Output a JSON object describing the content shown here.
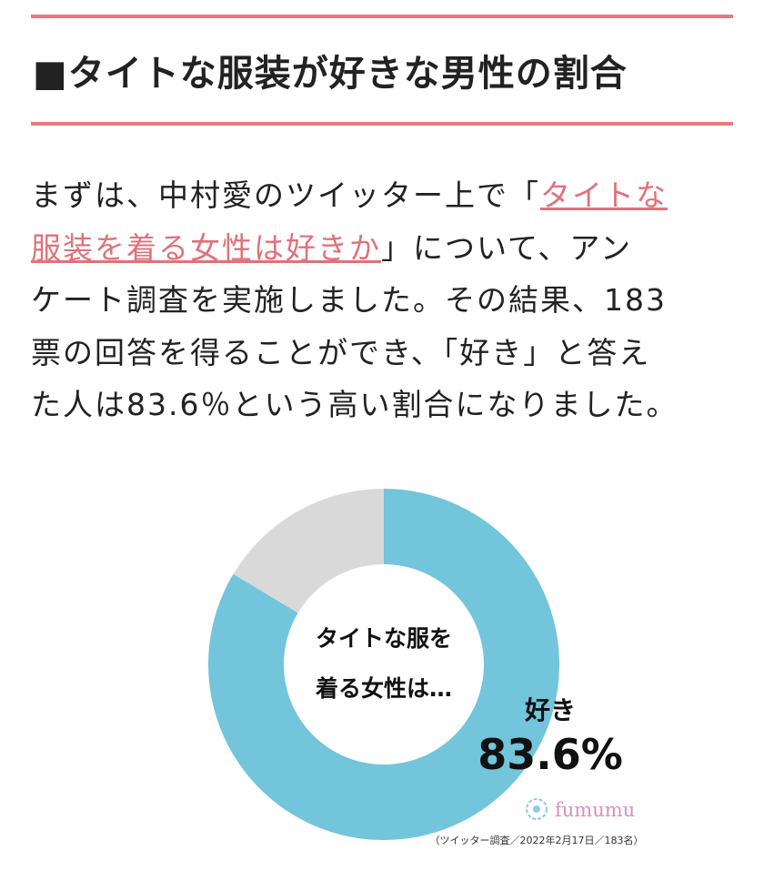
{
  "heading": {
    "marker": "■",
    "text": "タイトな服装が好きな男性の割合"
  },
  "body": {
    "line1_pre": "まずは、中村愛のツイッター上で「",
    "link_part1": "タイトな",
    "link_part2": "服装を着る女性は好きか",
    "line2_post": "」について、アン",
    "line3": "ケート調査を実施しました。その結果、183",
    "line4": "票の回答を得ることができ、「好き」と答え",
    "line5": "た人は83.6％という高い割合になりました。"
  },
  "chart_data": {
    "type": "pie",
    "variant": "donut",
    "center_label_line1": "タイトな服を",
    "center_label_line2": "着る女性は…",
    "slices": [
      {
        "label": "好き",
        "value": 83.6,
        "value_label": "83.6%",
        "color": "#72c5da"
      },
      {
        "value": 16.4,
        "color": "#d9d9d9"
      }
    ],
    "logo": "fumumu",
    "source": "（ツイッター調査／2022年2月17日／183名）"
  }
}
